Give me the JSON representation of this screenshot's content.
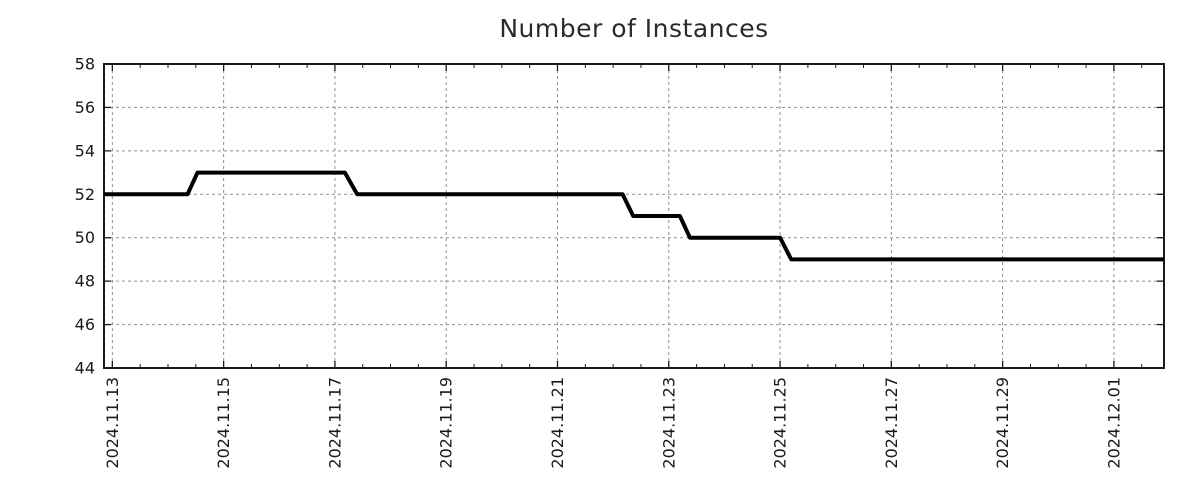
{
  "chart_data": {
    "type": "line",
    "title": "Number of Instances",
    "legend": false,
    "grid": true,
    "style": "step-line monitoring graph (gnuplot-like)",
    "colors": {
      "background": "#ffffff",
      "line": "#000000",
      "grid": "#909090",
      "axis": "#1a1a1a",
      "title": "#2b2b2b",
      "tick_label": "#1a1a1a"
    },
    "axes": {
      "x": {
        "unit": "date",
        "day_zero_label": "2024.11.13",
        "range_days": [
          -0.15,
          18.9
        ],
        "tick_positions_days": [
          0,
          2,
          4,
          6,
          8,
          10,
          12,
          14,
          16,
          18
        ],
        "tick_labels": [
          "2024.11.13",
          "2024.11.15",
          "2024.11.17",
          "2024.11.19",
          "2024.11.21",
          "2024.11.23",
          "2024.11.25",
          "2024.11.27",
          "2024.11.29",
          "2024.12.01"
        ],
        "minor_tick_interval_days": 0.5,
        "label_rotation_deg": -90
      },
      "y": {
        "range": [
          44,
          58
        ],
        "ticks": [
          44,
          46,
          48,
          50,
          52,
          54,
          56,
          58
        ],
        "gridline_ticks": [
          46,
          48,
          50,
          52,
          54,
          56
        ]
      }
    },
    "series": [
      {
        "name": "instances",
        "color": "#000000",
        "stroke_width": 4,
        "points": [
          {
            "day": -0.15,
            "value": 52
          },
          {
            "day": 1.35,
            "value": 52
          },
          {
            "day": 1.53,
            "value": 53
          },
          {
            "day": 4.18,
            "value": 53
          },
          {
            "day": 4.4,
            "value": 52
          },
          {
            "day": 9.17,
            "value": 52
          },
          {
            "day": 9.36,
            "value": 51
          },
          {
            "day": 10.2,
            "value": 51
          },
          {
            "day": 10.38,
            "value": 50
          },
          {
            "day": 12.0,
            "value": 50
          },
          {
            "day": 12.2,
            "value": 49
          },
          {
            "day": 18.9,
            "value": 49
          }
        ]
      }
    ]
  }
}
